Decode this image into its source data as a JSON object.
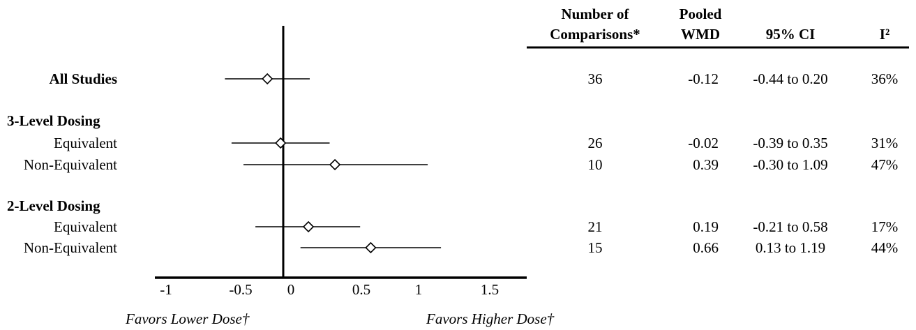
{
  "table": {
    "headers": {
      "comparisons": [
        "Number of",
        "Comparisons*"
      ],
      "wmd": [
        "Pooled",
        "WMD"
      ],
      "ci": [
        "95% CI"
      ],
      "i2": [
        "I²"
      ]
    }
  },
  "axis": {
    "favors_lower": "Favors Lower Dose†",
    "favors_higher": "Favors Higher Dose†"
  },
  "chart_data": {
    "type": "forest",
    "xlim": [
      -1,
      1.5
    ],
    "null_line": 0,
    "x_ticks": [
      -1,
      -0.5,
      0,
      0.5,
      1,
      1.5
    ],
    "x_tick_labels": [
      "-1",
      "-0.5",
      "0",
      "0.5",
      "1",
      "1.5"
    ],
    "rows": [
      {
        "label": "All Studies",
        "bold": true,
        "header": false,
        "indent": false,
        "n": "36",
        "wmd": "-0.12",
        "ci": "-0.44 to 0.20",
        "i2": "36%",
        "est": -0.12,
        "low": -0.44,
        "high": 0.2
      },
      {
        "label": "3-Level Dosing",
        "bold": true,
        "header": true,
        "indent": false
      },
      {
        "label": "Equivalent",
        "bold": false,
        "header": false,
        "indent": true,
        "n": "26",
        "wmd": "-0.02",
        "ci": "-0.39 to 0.35",
        "i2": "31%",
        "est": -0.02,
        "low": -0.39,
        "high": 0.35
      },
      {
        "label": "Non-Equivalent",
        "bold": false,
        "header": false,
        "indent": true,
        "n": "10",
        "wmd": "0.39",
        "ci": "-0.30 to 1.09",
        "i2": "47%",
        "est": 0.39,
        "low": -0.3,
        "high": 1.09
      },
      {
        "label": "2-Level Dosing",
        "bold": true,
        "header": true,
        "indent": false
      },
      {
        "label": "Equivalent",
        "bold": false,
        "header": false,
        "indent": true,
        "n": "21",
        "wmd": "0.19",
        "ci": "-0.21 to 0.58",
        "i2": "17%",
        "est": 0.19,
        "low": -0.21,
        "high": 0.58
      },
      {
        "label": "Non-Equivalent",
        "bold": false,
        "header": false,
        "indent": true,
        "n": "15",
        "wmd": "0.66",
        "ci": "0.13 to 1.19",
        "i2": "44%",
        "est": 0.66,
        "low": 0.13,
        "high": 1.19
      }
    ]
  }
}
